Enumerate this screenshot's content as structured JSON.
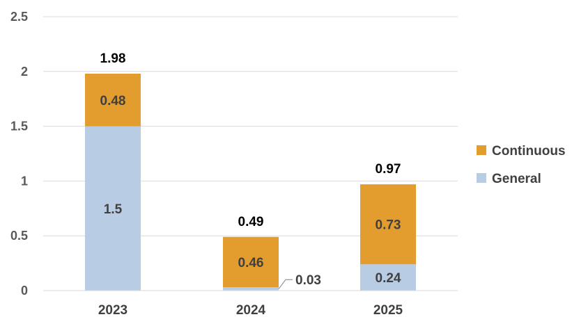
{
  "chart_data": {
    "type": "bar",
    "stacked": true,
    "categories": [
      "2023",
      "2024",
      "2025"
    ],
    "series": [
      {
        "name": "General",
        "values": [
          1.5,
          0.03,
          0.24
        ],
        "color": "#b8cce4"
      },
      {
        "name": "Continuous",
        "values": [
          0.48,
          0.46,
          0.73
        ],
        "color": "#e39c2e"
      }
    ],
    "totals": [
      "1.98",
      "0.49",
      "0.97"
    ],
    "segment_labels": [
      [
        "1.5",
        "0.48"
      ],
      [
        "0.03",
        "0.46"
      ],
      [
        "0.24",
        "0.73"
      ]
    ],
    "yticks": [
      "0",
      "0.5",
      "1",
      "1.5",
      "2",
      "2.5"
    ],
    "ylim": [
      0,
      2.5
    ],
    "grid": true,
    "legend_position": "right",
    "legend_order": [
      "Continuous",
      "General"
    ],
    "title": "",
    "xlabel": "",
    "ylabel": ""
  }
}
